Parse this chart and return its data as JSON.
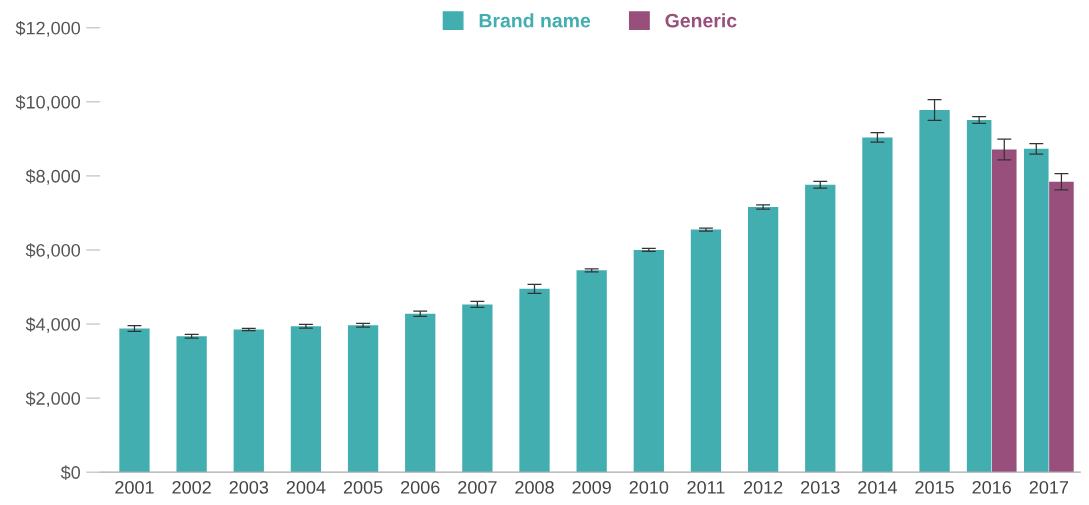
{
  "chart_data": {
    "type": "bar",
    "categories": [
      "2001",
      "2002",
      "2003",
      "2004",
      "2005",
      "2006",
      "2007",
      "2008",
      "2009",
      "2010",
      "2011",
      "2012",
      "2013",
      "2014",
      "2015",
      "2016",
      "2017"
    ],
    "series": [
      {
        "name": "Brand name",
        "color": "#42aeb0",
        "values": [
          3880,
          3670,
          3850,
          3940,
          3970,
          4280,
          4530,
          4950,
          5450,
          6000,
          6550,
          7160,
          7760,
          9040,
          9780,
          9510,
          8730
        ],
        "errors": [
          80,
          50,
          30,
          50,
          50,
          70,
          80,
          120,
          40,
          40,
          40,
          60,
          90,
          130,
          280,
          90,
          140
        ]
      },
      {
        "name": "Generic",
        "color": "#984f7c",
        "values": [
          null,
          null,
          null,
          null,
          null,
          null,
          null,
          null,
          null,
          null,
          null,
          null,
          null,
          null,
          null,
          8710,
          7840
        ],
        "errors": [
          null,
          null,
          null,
          null,
          null,
          null,
          null,
          null,
          null,
          null,
          null,
          null,
          null,
          null,
          null,
          280,
          220
        ]
      }
    ],
    "ylim": [
      0,
      12000
    ],
    "yticks": [
      {
        "value": 0,
        "label": "$0"
      },
      {
        "value": 2000,
        "label": "$2,000"
      },
      {
        "value": 4000,
        "label": "$4,000"
      },
      {
        "value": 6000,
        "label": "$6,000"
      },
      {
        "value": 8000,
        "label": "$8,000"
      },
      {
        "value": 10000,
        "label": "$10,000"
      },
      {
        "value": 12000,
        "label": "$12,000"
      }
    ],
    "grid": false,
    "legend": "top"
  }
}
